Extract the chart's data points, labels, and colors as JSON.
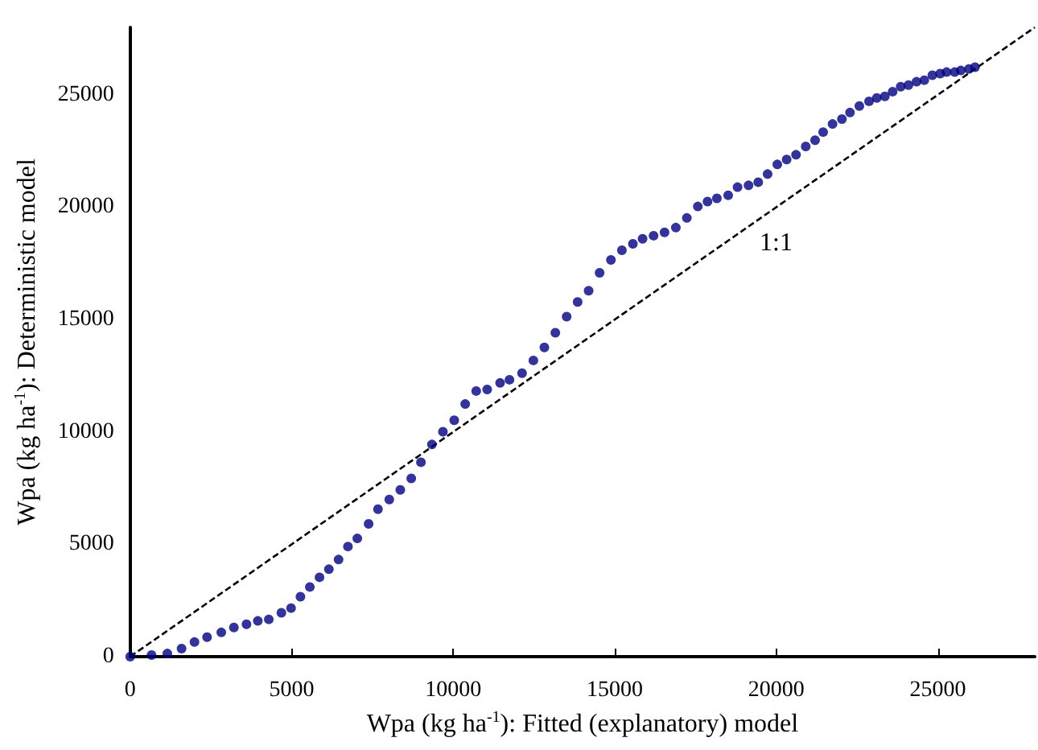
{
  "chart_data": {
    "type": "scatter",
    "xlabel": "Wpa (kg ha$^{-1}$): Fitted (explanatory) model",
    "ylabel": "Wpa (kg ha$^{-1}$): Deterministic model",
    "xlim": [
      0,
      28000
    ],
    "ylim": [
      0,
      28000
    ],
    "xticks": [
      0,
      5000,
      10000,
      15000,
      20000,
      25000
    ],
    "yticks": [
      0,
      5000,
      10000,
      15000,
      20000,
      25000
    ],
    "grid": false,
    "marker": "circle",
    "annotations": [
      "1:1"
    ],
    "series": [
      {
        "color": "#000080",
        "x": [
          0,
          660,
          1150,
          1590,
          1990,
          2380,
          2820,
          3210,
          3600,
          3950,
          4290,
          4680,
          4980,
          5270,
          5560,
          5860,
          6150,
          6450,
          6740,
          7030,
          7380,
          7670,
          8020,
          8360,
          8700,
          9000,
          9340,
          9680,
          10030,
          10370,
          10710,
          11050,
          11450,
          11740,
          12130,
          12480,
          12820,
          13160,
          13510,
          13850,
          14190,
          14530,
          14880,
          15220,
          15560,
          15860,
          16200,
          16540,
          16890,
          17230,
          17570,
          17870,
          18160,
          18510,
          18800,
          19140,
          19440,
          19730,
          20030,
          20320,
          20610,
          20910,
          21200,
          21450,
          21740,
          22030,
          22280,
          22570,
          22870,
          23110,
          23360,
          23600,
          23850,
          24090,
          24340,
          24580,
          24830,
          25070,
          25270,
          25520,
          25710,
          25960,
          26150
        ],
        "values": [
          0,
          70,
          140,
          360,
          650,
          870,
          1080,
          1300,
          1440,
          1590,
          1660,
          1950,
          2160,
          2670,
          3100,
          3530,
          3890,
          4320,
          4900,
          5260,
          5910,
          6560,
          6990,
          7420,
          7930,
          8650,
          9440,
          10010,
          10520,
          11240,
          11820,
          11890,
          12180,
          12320,
          12610,
          13180,
          13760,
          14410,
          15130,
          15780,
          16280,
          17080,
          17650,
          18080,
          18370,
          18590,
          18730,
          18880,
          19090,
          19520,
          20030,
          20250,
          20390,
          20530,
          20890,
          20970,
          21110,
          21470,
          21900,
          22120,
          22330,
          22700,
          22980,
          23340,
          23700,
          23920,
          24210,
          24500,
          24710,
          24860,
          24930,
          25140,
          25360,
          25430,
          25580,
          25650,
          25870,
          25940,
          26010,
          26010,
          26080,
          26150,
          26230
        ]
      },
      {
        "type": "line",
        "color": "#000000",
        "line_style": "dashed",
        "marker": "none",
        "x": [
          0,
          28000
        ],
        "values": [
          0,
          28000
        ]
      }
    ]
  }
}
